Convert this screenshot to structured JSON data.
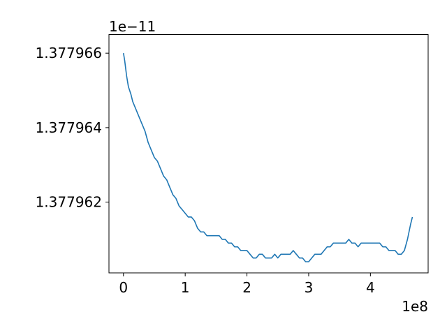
{
  "chart_data": {
    "type": "line",
    "title": "",
    "xlabel": "",
    "ylabel": "",
    "x_offset_label": "1e8",
    "y_offset_label": "1e−11",
    "xlim": [
      -0.235,
      4.935
    ],
    "ylim": [
      1.3779601,
      1.3779665
    ],
    "x_ticks": [
      0,
      1,
      2,
      3,
      4
    ],
    "x_tick_labels": [
      "0",
      "1",
      "2",
      "3",
      "4"
    ],
    "y_ticks": [
      1.377962,
      1.377964,
      1.377966
    ],
    "y_tick_labels": [
      "1.377962",
      "1.377964",
      "1.377966"
    ],
    "grid": false,
    "legend": "none",
    "series": [
      {
        "color": "#1f77b4",
        "x": [
          0,
          0.02,
          0.05,
          0.08,
          0.12,
          0.15,
          0.2,
          0.25,
          0.3,
          0.35,
          0.4,
          0.45,
          0.5,
          0.55,
          0.6,
          0.65,
          0.7,
          0.75,
          0.8,
          0.85,
          0.9,
          0.95,
          1.0,
          1.05,
          1.1,
          1.15,
          1.2,
          1.25,
          1.3,
          1.35,
          1.4,
          1.45,
          1.5,
          1.55,
          1.6,
          1.65,
          1.7,
          1.75,
          1.8,
          1.85,
          1.9,
          1.95,
          2.0,
          2.05,
          2.1,
          2.15,
          2.2,
          2.25,
          2.3,
          2.35,
          2.4,
          2.45,
          2.5,
          2.55,
          2.6,
          2.65,
          2.7,
          2.75,
          2.8,
          2.85,
          2.9,
          2.95,
          3.0,
          3.05,
          3.1,
          3.15,
          3.2,
          3.25,
          3.3,
          3.35,
          3.4,
          3.45,
          3.5,
          3.55,
          3.6,
          3.65,
          3.7,
          3.75,
          3.8,
          3.85,
          3.9,
          3.95,
          4.0,
          4.05,
          4.1,
          4.15,
          4.2,
          4.25,
          4.3,
          4.35,
          4.4,
          4.45,
          4.5,
          4.55,
          4.6,
          4.65,
          4.68
        ],
        "y": [
          1.377966,
          1.3779658,
          1.3779654,
          1.3779651,
          1.3779649,
          1.3779647,
          1.3779645,
          1.3779643,
          1.3779641,
          1.3779639,
          1.3779636,
          1.3779634,
          1.3779632,
          1.3779631,
          1.3779629,
          1.3779627,
          1.3779626,
          1.3779624,
          1.3779622,
          1.3779621,
          1.3779619,
          1.3779618,
          1.3779617,
          1.3779616,
          1.3779616,
          1.3779615,
          1.3779613,
          1.3779612,
          1.3779612,
          1.3779611,
          1.3779611,
          1.3779611,
          1.3779611,
          1.3779611,
          1.377961,
          1.377961,
          1.3779609,
          1.3779609,
          1.3779608,
          1.3779608,
          1.3779607,
          1.3779607,
          1.3779607,
          1.3779606,
          1.3779605,
          1.3779605,
          1.3779606,
          1.3779606,
          1.3779605,
          1.3779605,
          1.3779605,
          1.3779606,
          1.3779605,
          1.3779606,
          1.3779606,
          1.3779606,
          1.3779606,
          1.3779607,
          1.3779606,
          1.3779605,
          1.3779605,
          1.3779604,
          1.3779604,
          1.3779605,
          1.3779606,
          1.3779606,
          1.3779606,
          1.3779607,
          1.3779608,
          1.3779608,
          1.3779609,
          1.3779609,
          1.3779609,
          1.3779609,
          1.3779609,
          1.377961,
          1.3779609,
          1.3779609,
          1.3779608,
          1.3779609,
          1.3779609,
          1.3779609,
          1.3779609,
          1.3779609,
          1.3779609,
          1.3779609,
          1.3779608,
          1.3779608,
          1.3779607,
          1.3779607,
          1.3779607,
          1.3779606,
          1.3779606,
          1.3779607,
          1.377961,
          1.3779614,
          1.3779616
        ]
      }
    ]
  }
}
